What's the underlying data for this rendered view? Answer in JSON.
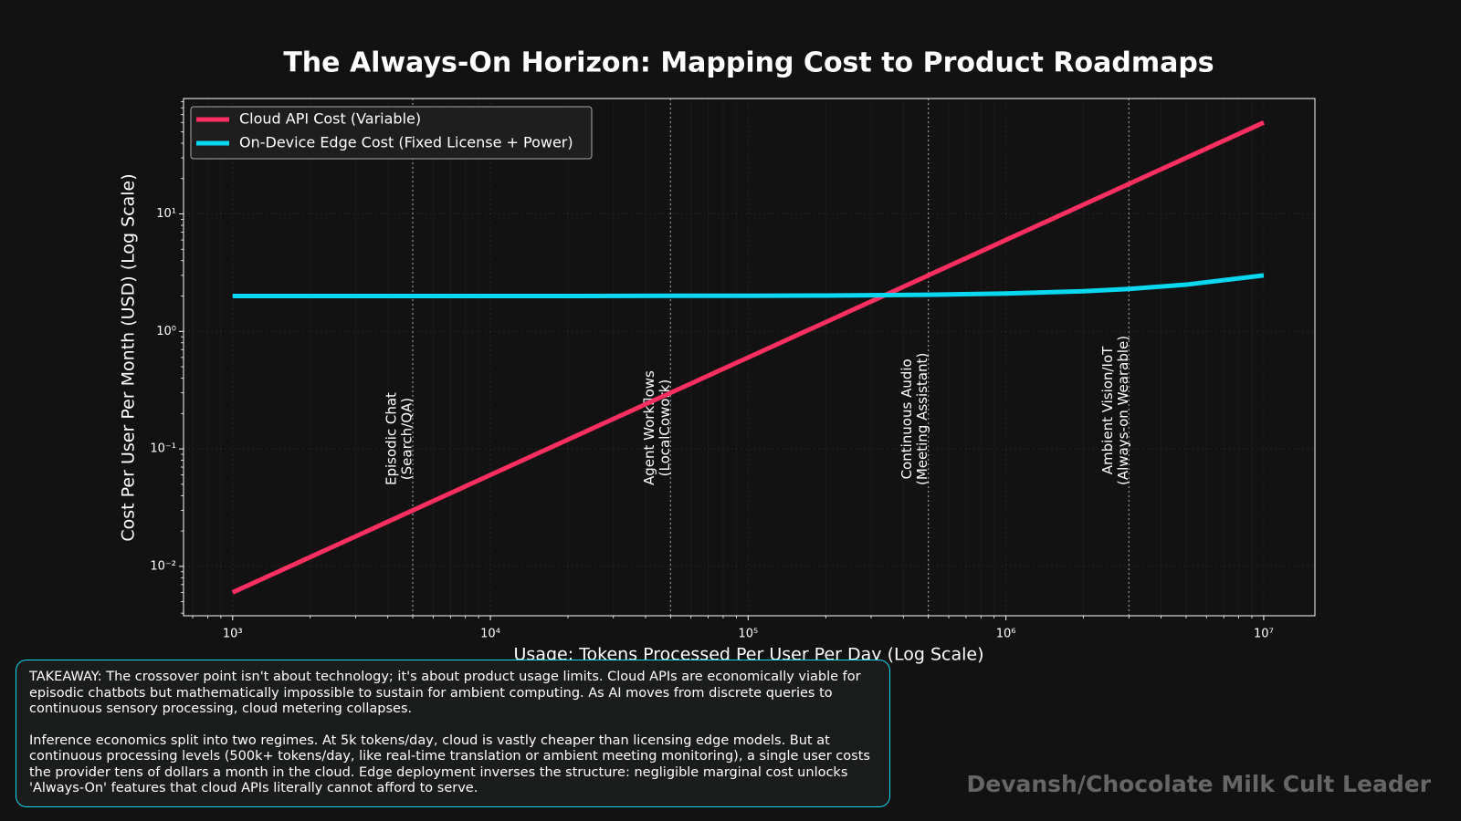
{
  "chart_data": {
    "type": "line",
    "title": "The Always-On Horizon: Mapping Cost to Product Roadmaps",
    "x_label": "Usage: Tokens Processed Per User Per Day (Log Scale)",
    "y_label": "Cost Per User Per Month (USD) (Log Scale)",
    "x_log": true,
    "y_log": true,
    "grid": true,
    "legend_position": "upper-left",
    "x": [
      1000,
      2000,
      5000,
      10000,
      20000,
      50000,
      100000,
      200000,
      500000,
      1000000,
      2000000,
      3000000,
      5000000,
      10000000
    ],
    "series": [
      {
        "name": "Cloud API Cost (Variable)",
        "color": "#ff2e63",
        "values": [
          0.006,
          0.012,
          0.03,
          0.06,
          0.12,
          0.3,
          0.6,
          1.2,
          3,
          6,
          12,
          18,
          30,
          60
        ]
      },
      {
        "name": "On-Device Edge Cost (Fixed License + Power)",
        "color": "#08d9f0",
        "values": [
          2,
          2,
          2,
          2,
          2,
          2.01,
          2.01,
          2.02,
          2.05,
          2.1,
          2.2,
          2.3,
          2.5,
          3
        ]
      }
    ],
    "xlim": [
      645,
      15800000
    ],
    "ylim": [
      0.0038,
      96
    ],
    "xticks": [
      {
        "value": 1000,
        "label": "10³"
      },
      {
        "value": 10000,
        "label": "10⁴"
      },
      {
        "value": 100000,
        "label": "10⁵"
      },
      {
        "value": 1000000,
        "label": "10⁶"
      },
      {
        "value": 10000000,
        "label": "10⁷"
      }
    ],
    "yticks": [
      {
        "value": 0.01,
        "label": "10⁻²"
      },
      {
        "value": 0.1,
        "label": "10⁻¹"
      },
      {
        "value": 1,
        "label": "10⁰"
      },
      {
        "value": 10,
        "label": "10¹"
      }
    ],
    "annotations": [
      {
        "x": 5000,
        "lines": [
          "Episodic Chat",
          "(Search/QA)"
        ]
      },
      {
        "x": 50000,
        "lines": [
          "Agent Workflows",
          "(LocalCowork)"
        ]
      },
      {
        "x": 500000,
        "lines": [
          "Continuous Audio",
          "(Meeting Assistant)"
        ]
      },
      {
        "x": 3000000,
        "lines": [
          "Ambient Vision/IoT",
          "(Always-on Wearable)"
        ]
      }
    ]
  },
  "takeaway": [
    "TAKEAWAY: The crossover point isn't about technology; it's about product usage limits. Cloud APIs are economically viable for episodic chatbots but mathematically impossible to sustain for ambient computing. As AI moves from discrete queries to continuous sensory processing, cloud metering collapses.",
    "Inference economics split into two regimes. At 5k tokens/day, cloud is vastly cheaper than licensing edge models. But at continuous processing levels (500k+ tokens/day, like real-time translation or ambient meeting monitoring), a single user costs the provider tens of dollars a month in the cloud. Edge deployment inverses the structure: negligible marginal cost unlocks 'Always-On' features that cloud APIs literally cannot afford to serve."
  ],
  "watermark": "Devansh/Chocolate Milk Cult Leader"
}
